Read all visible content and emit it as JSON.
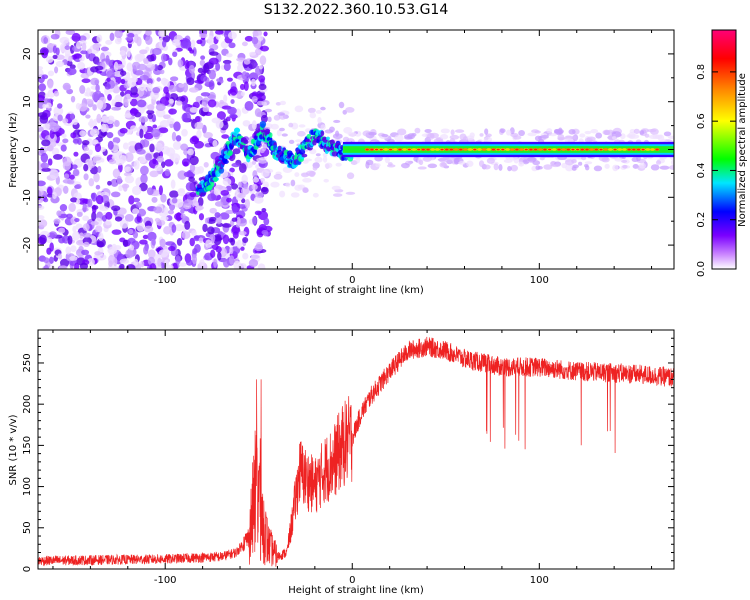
{
  "title": "S132.2022.360.10.53.G14",
  "chart_data": [
    {
      "type": "heatmap",
      "xlabel": "Height of straight line (km)",
      "ylabel": "Frequency (Hz)",
      "xlim": [
        -168,
        172
      ],
      "ylim": [
        -25,
        25
      ],
      "xticks": [
        -100,
        0,
        100
      ],
      "yticks": [
        -20,
        -10,
        0,
        10,
        20
      ],
      "colorbar": {
        "label": "Normalized spectral amplitude",
        "range": [
          0,
          0.97
        ],
        "ticks": [
          0.0,
          0.2,
          0.4,
          0.6,
          0.8
        ],
        "colors": [
          "#ffffff",
          "#cc88ff",
          "#7a00ff",
          "#0000ff",
          "#00e6ff",
          "#00ff00",
          "#ffff00",
          "#ff8800",
          "#ff0000",
          "#ff0077"
        ]
      },
      "ridge": {
        "x": [
          -80,
          -75,
          -70,
          -66,
          -62,
          -58,
          -55,
          -52,
          -48,
          -44,
          -40,
          -36,
          -32,
          -28,
          -24,
          -20,
          -16,
          -12,
          -8,
          -4,
          0,
          10,
          40,
          80,
          120,
          172
        ],
        "freq": [
          -8,
          -6,
          -3,
          0,
          3,
          1,
          -1,
          1,
          4,
          2,
          -1,
          -1.5,
          -2.5,
          -1,
          1,
          3,
          2,
          0.5,
          0,
          -0.5,
          -0.5,
          0,
          0,
          0,
          0,
          0
        ]
      },
      "noise_region_x": [
        -168,
        -55
      ],
      "stable_region_x": [
        0,
        172
      ]
    },
    {
      "type": "line",
      "xlabel": "Height of straight line (km)",
      "ylabel": "SNR (10 * v/v)",
      "xlim": [
        -168,
        172
      ],
      "ylim": [
        0,
        290
      ],
      "xticks": [
        -100,
        0,
        100
      ],
      "yticks": [
        0,
        50,
        100,
        150,
        200,
        250
      ],
      "series_color": "#ee2222",
      "envelope": {
        "x": [
          -168,
          -100,
          -70,
          -62,
          -55,
          -52,
          -50,
          -48,
          -45,
          -40,
          -35,
          -32,
          -28,
          -25,
          -20,
          -15,
          -10,
          -5,
          0,
          5,
          10,
          20,
          30,
          40,
          50,
          60,
          80,
          100,
          120,
          140,
          160,
          172
        ],
        "mean": [
          10,
          12,
          15,
          20,
          40,
          90,
          100,
          60,
          30,
          15,
          20,
          60,
          120,
          110,
          100,
          120,
          130,
          150,
          160,
          190,
          210,
          240,
          265,
          270,
          265,
          255,
          245,
          245,
          240,
          238,
          235,
          232
        ]
      },
      "dropouts_x_range": [
        70,
        150
      ],
      "dropout_min": 140
    }
  ]
}
